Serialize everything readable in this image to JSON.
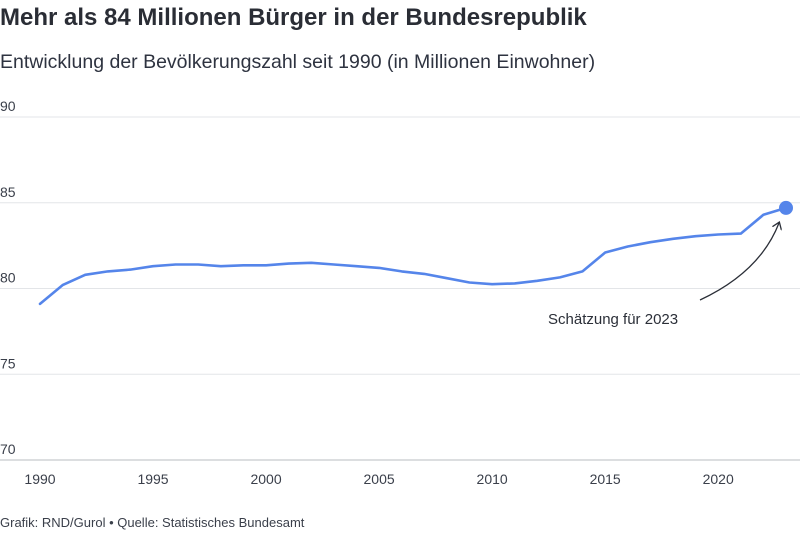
{
  "title": "Mehr als 84 Millionen Bürger in der Bundesrepublik",
  "subtitle": "Entwicklung der Bevölkerungszahl seit 1990 (in Millionen Einwohner)",
  "footer": "Grafik: RND/Gurol • Quelle: Statistisches Bundesamt",
  "colors": {
    "line": "#5585ea",
    "grid": "#e3e5e8",
    "text": "#2b2f38"
  },
  "chart_data": {
    "type": "line",
    "title": "Mehr als 84 Millionen Bürger in der Bundesrepublik",
    "subtitle": "Entwicklung der Bevölkerungszahl seit 1990 (in Millionen Einwohner)",
    "xlim": [
      1990,
      2023
    ],
    "ylim": [
      70,
      90
    ],
    "yticks": [
      70,
      75,
      80,
      85,
      90
    ],
    "xticks": [
      1990,
      1995,
      2000,
      2005,
      2010,
      2015,
      2020
    ],
    "grid": "horizontal",
    "series": [
      {
        "x": [
          1990,
          1991,
          1992,
          1993,
          1994,
          1995,
          1996,
          1997,
          1998,
          1999,
          2000,
          2001,
          2002,
          2003,
          2004,
          2005,
          2006,
          2007,
          2008,
          2009,
          2010,
          2011,
          2012,
          2013,
          2014,
          2015,
          2016,
          2017,
          2018,
          2019,
          2020,
          2021,
          2022,
          2023
        ],
        "values": [
          79.1,
          80.2,
          80.8,
          81.0,
          81.1,
          81.3,
          81.4,
          81.4,
          81.3,
          81.35,
          81.35,
          81.45,
          81.5,
          81.4,
          81.3,
          81.2,
          81.0,
          80.85,
          80.6,
          80.35,
          80.25,
          80.3,
          80.45,
          80.65,
          81.0,
          82.1,
          82.45,
          82.7,
          82.9,
          83.05,
          83.15,
          83.2,
          84.3,
          84.7
        ]
      }
    ],
    "highlight": {
      "x": 2023,
      "y": 84.7,
      "label": "Schätzung für 2023"
    }
  }
}
